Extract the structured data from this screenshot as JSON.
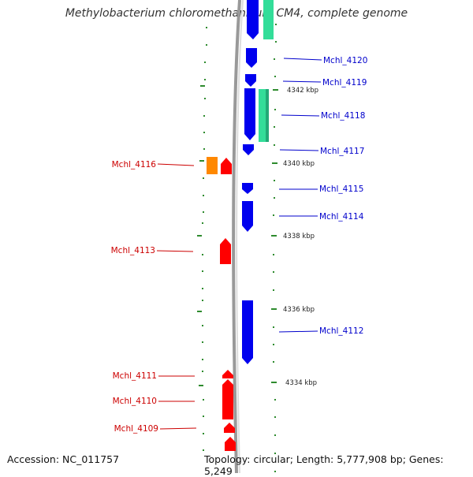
{
  "header": {
    "title": "Methylobacterium chloromethanicum CM4, complete genome"
  },
  "footer": {
    "accession": "Accession: NC_011757",
    "topology": "Topology: circular; Length: 5,777,908 bp; Genes: 5,249"
  },
  "colors": {
    "background": "#ffffff",
    "backbone": "#888888",
    "tick_green": "#2e8b2e",
    "gene_blue": "#0000ee",
    "gene_red": "#ff0000",
    "gene_orange": "#ff8800",
    "gene_teal": "#33dd99",
    "label_blue": "#0000cc",
    "label_red": "#cc0000"
  },
  "kbp_labels": [
    "4342 kbp",
    "4340 kbp",
    "4338 kbp",
    "4336 kbp",
    "4334 kbp"
  ],
  "genes_right": [
    "Mchl_4120",
    "Mchl_4119",
    "Mchl_4118",
    "Mchl_4117",
    "Mchl_4115",
    "Mchl_4114",
    "Mchl_4112"
  ],
  "genes_left": [
    "Mchl_4116",
    "Mchl_4113",
    "Mchl_4111",
    "Mchl_4110",
    "Mchl_4109"
  ]
}
